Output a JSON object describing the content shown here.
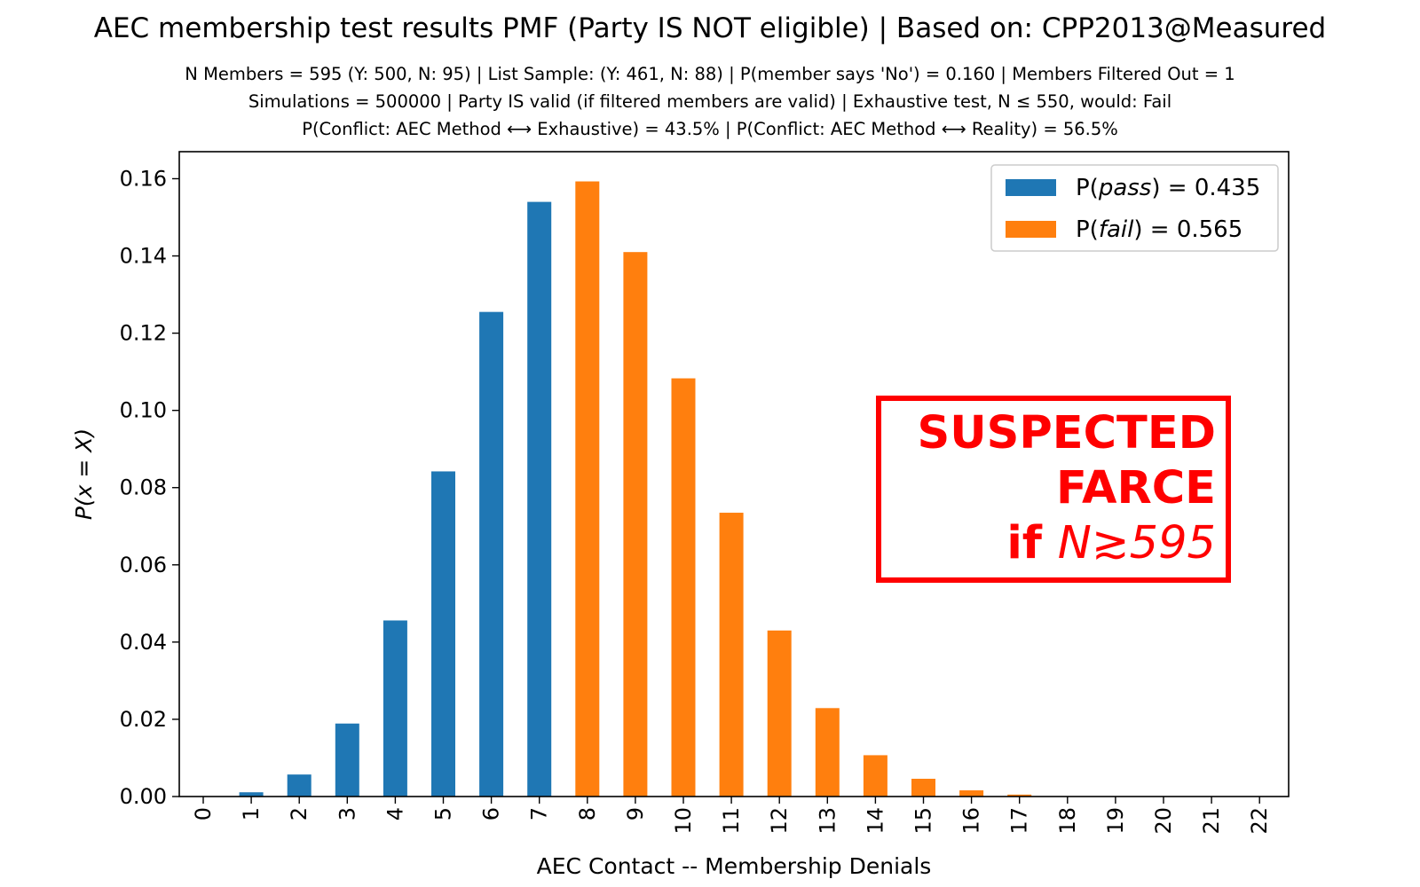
{
  "chart_data": {
    "type": "bar",
    "title": "AEC membership test results PMF (Party IS NOT eligible) | Based on: CPP2013@Measured",
    "subtitle_lines": [
      "N Members = 595 (Y: 500, N: 95) | List Sample: (Y: 461, N: 88) | P(member says 'No') = 0.160 | Members Filtered Out = 1",
      "Simulations = 500000 | Party IS valid (if filtered members are valid) | Exhaustive test, N ≤ 550, would: Fail",
      "P(Conflict: AEC Method ⟷ Exhaustive) = 43.5% | P(Conflict: AEC Method ⟷ Reality) = 56.5%"
    ],
    "xlabel": "AEC Contact -- Membership Denials",
    "ylabel": "P(x = X)",
    "ylim": [
      0,
      0.167
    ],
    "yticks": [
      "0.00",
      "0.02",
      "0.04",
      "0.06",
      "0.08",
      "0.10",
      "0.12",
      "0.14",
      "0.16"
    ],
    "categories": [
      "0",
      "1",
      "2",
      "3",
      "4",
      "5",
      "6",
      "7",
      "8",
      "9",
      "10",
      "11",
      "12",
      "13",
      "14",
      "15",
      "16",
      "17",
      "18",
      "19",
      "20",
      "21",
      "22"
    ],
    "values": [
      0.0,
      0.0011,
      0.0057,
      0.0189,
      0.0456,
      0.0842,
      0.1255,
      0.154,
      0.1593,
      0.141,
      0.1083,
      0.0735,
      0.043,
      0.0229,
      0.0107,
      0.0046,
      0.0016,
      0.0005,
      0.0001,
      0.0,
      0.0,
      0.0,
      0.0
    ],
    "pass_max_category": 7,
    "colors": {
      "pass": "#1f77b4",
      "fail": "#ff7f0e",
      "farce": "#ff0000"
    },
    "legend": {
      "position": "top-right",
      "entries": [
        {
          "label_prefix": "P(",
          "label_var": "pass",
          "label_suffix": ") = 0.435",
          "color": "#1f77b4"
        },
        {
          "label_prefix": "P(",
          "label_var": "fail",
          "label_suffix": ") = 0.565",
          "color": "#ff7f0e"
        }
      ]
    },
    "annotation": {
      "line1": "SUSPECTED",
      "line2": "FARCE",
      "line3_bold": "if ",
      "line3_rest": "N≳595"
    }
  }
}
